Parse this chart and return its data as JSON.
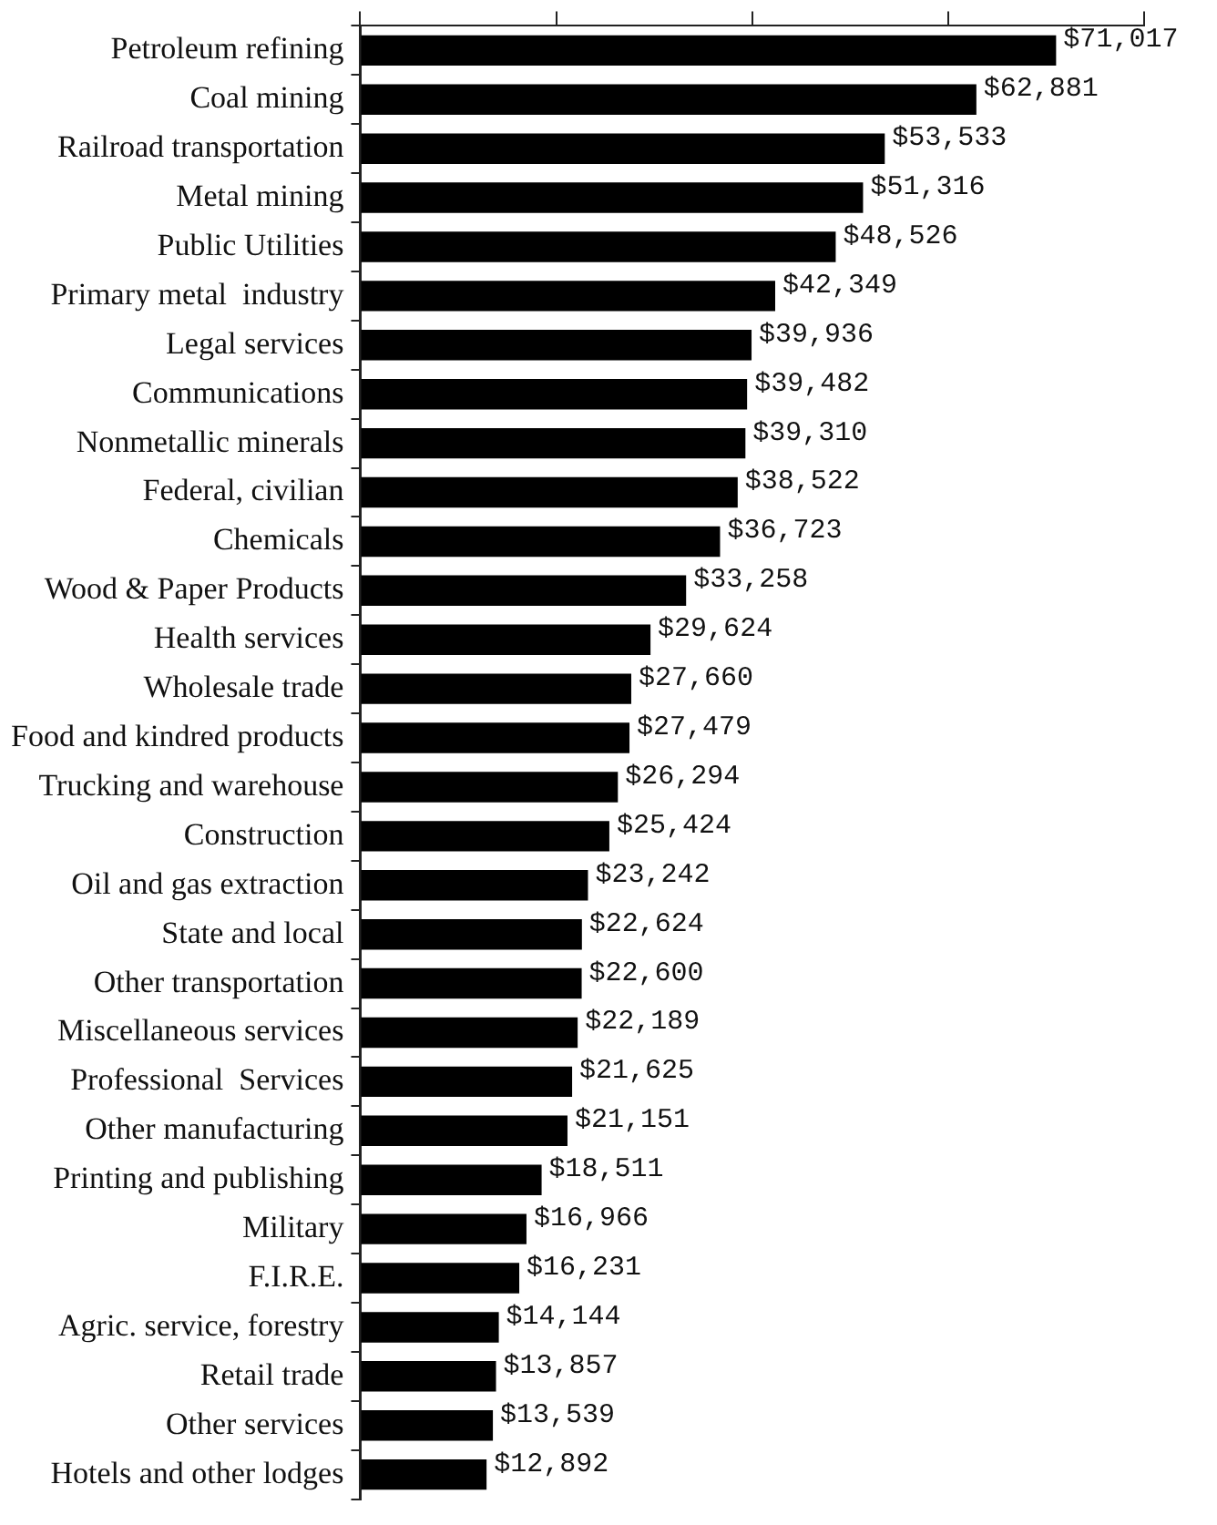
{
  "chart_data": {
    "type": "bar",
    "orientation": "horizontal",
    "color": "#000000",
    "categories": [
      "Petroleum refining",
      "Coal mining",
      "Railroad transportation",
      "Metal mining",
      "Public Utilities",
      "Primary metal  industry",
      "Legal services",
      "Communications",
      "Nonmetallic minerals",
      "Federal, civilian",
      "Chemicals",
      "Wood & Paper Products",
      "Health services",
      "Wholesale trade",
      "Food and kindred products",
      "Trucking and warehouse",
      "Construction",
      "Oil and gas extraction",
      "State and local",
      "Other transportation",
      "Miscellaneous services",
      "Professional  Services",
      "Other manufacturing",
      "Printing and publishing",
      "Military",
      "F.I.R.E.",
      "Agric. service, forestry",
      "Retail trade",
      "Other services",
      "Hotels and other lodges"
    ],
    "values": [
      71017,
      62881,
      53533,
      51316,
      48526,
      42349,
      39936,
      39482,
      39310,
      38522,
      36723,
      33258,
      29624,
      27660,
      27479,
      26294,
      25424,
      23242,
      22624,
      22600,
      22189,
      21625,
      21151,
      18511,
      16966,
      16231,
      14144,
      13857,
      13539,
      12892
    ],
    "value_labels": [
      "$71,017",
      "$62,881",
      "$53,533",
      "$51,316",
      "$48,526",
      "$42,349",
      "$39,936",
      "$39,482",
      "$39,310",
      "$38,522",
      "$36,723",
      "$33,258",
      "$29,624",
      "$27,660",
      "$27,479",
      "$26,294",
      "$25,424",
      "$23,242",
      "$22,624",
      "$22,600",
      "$22,189",
      "$21,625",
      "$21,151",
      "$18,511",
      "$16,966",
      "$16,231",
      "$14,144",
      "$13,857",
      "$13,539",
      "$12,892"
    ],
    "xlim": [
      0,
      80000
    ],
    "xticks": [
      {
        "value": 0,
        "label": null
      },
      {
        "value": 20000,
        "label": null
      },
      {
        "value": 40000,
        "label": null
      },
      {
        "value": 60000,
        "label": null
      },
      {
        "value": 80000,
        "label": null
      }
    ],
    "tick_labels": "y",
    "grid": false,
    "legend": false
  }
}
